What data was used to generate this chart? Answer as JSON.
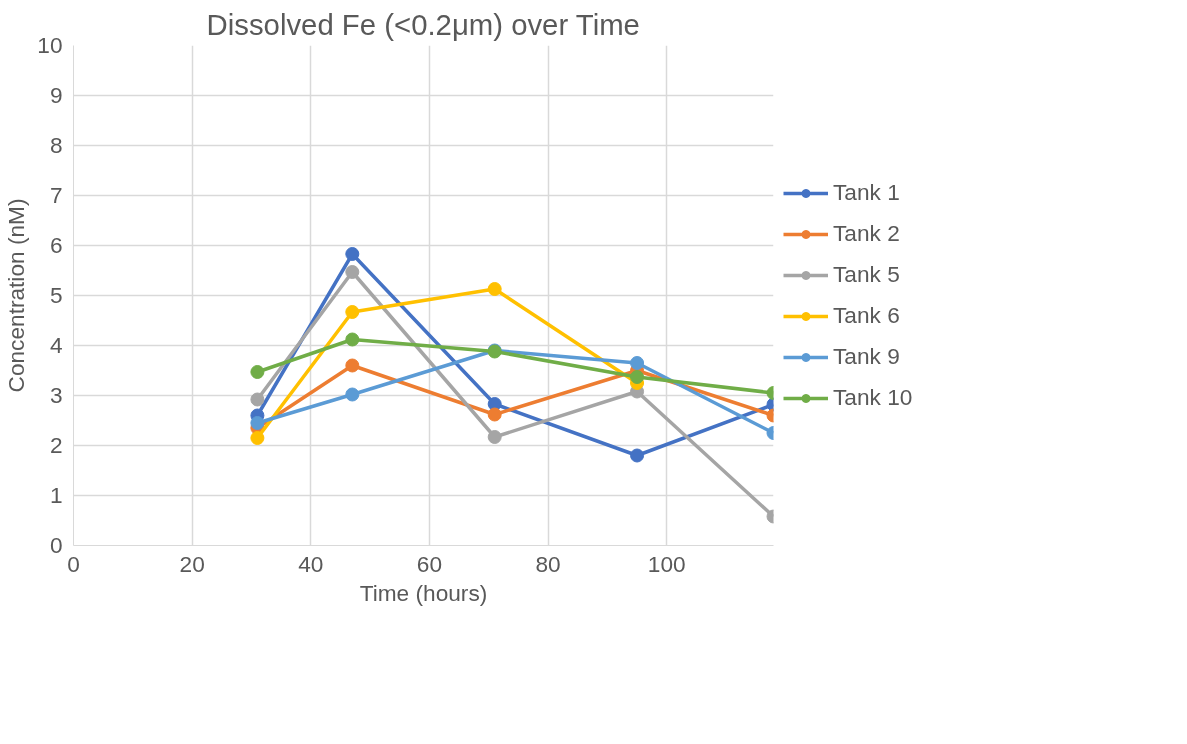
{
  "chart_data": {
    "type": "line",
    "title": "Dissolved Fe (<0.2μm) over Time",
    "xlabel": "Time (hours)",
    "ylabel": "Concentration (nM)",
    "x": [
      31,
      47,
      71,
      95,
      118
    ],
    "series": [
      {
        "name": "Tank 1",
        "color": "#4472c4",
        "values": [
          2.6,
          5.83,
          2.83,
          1.8,
          2.82
        ]
      },
      {
        "name": "Tank 2",
        "color": "#ed7d31",
        "values": [
          2.35,
          3.6,
          2.62,
          3.5,
          2.6
        ]
      },
      {
        "name": "Tank 5",
        "color": "#a5a5a5",
        "values": [
          2.92,
          5.47,
          2.17,
          3.08,
          0.58
        ]
      },
      {
        "name": "Tank 6",
        "color": "#ffc000",
        "values": [
          2.15,
          4.67,
          5.13,
          3.25,
          null
        ]
      },
      {
        "name": "Tank 9",
        "color": "#5b9bd5",
        "values": [
          2.45,
          3.02,
          3.9,
          3.65,
          2.25
        ]
      },
      {
        "name": "Tank 10",
        "color": "#70ad47",
        "values": [
          3.47,
          4.12,
          3.88,
          3.37,
          3.05
        ]
      }
    ],
    "xlim": [
      0,
      118
    ],
    "xticks": [
      0,
      20,
      40,
      60,
      80,
      100
    ],
    "ylim": [
      0,
      10
    ],
    "yticks": [
      0,
      1,
      2,
      3,
      4,
      5,
      6,
      7,
      8,
      9,
      10
    ],
    "grid": true,
    "legend": "right",
    "marker": "circle",
    "line_style": "solid"
  }
}
